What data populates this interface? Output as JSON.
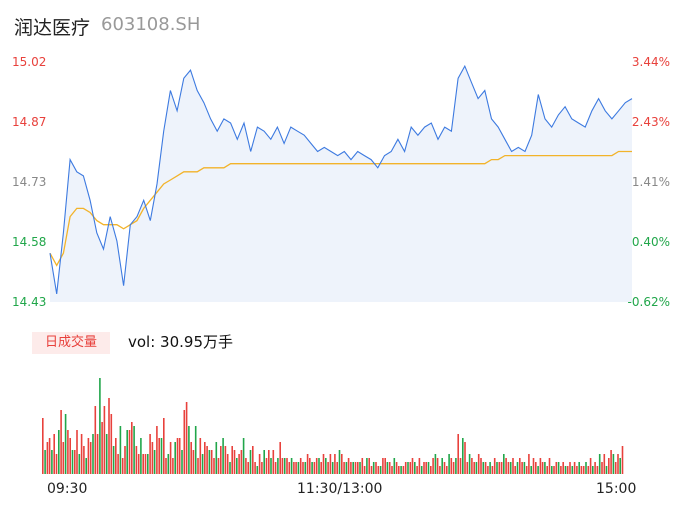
{
  "header": {
    "name": "润达医疗",
    "code": "603108.SH"
  },
  "colors": {
    "up": "#e8413c",
    "down": "#21a64a",
    "price_line": "#3d7ae0",
    "avg_line": "#f2b32a",
    "area": "#eef3fb",
    "neutral": "#888888"
  },
  "volume": {
    "tag": "日成交量",
    "label": "vol: 30.95万手"
  },
  "chart_data": {
    "type": "line",
    "left_axis": [
      "15.02",
      "14.87",
      "14.73",
      "14.58",
      "14.43"
    ],
    "right_axis": [
      "3.44%",
      "2.43%",
      "1.41%",
      "0.40%",
      "-0.62%"
    ],
    "x_ticks": [
      "09:30",
      "11:30/13:00",
      "15:00"
    ],
    "ylim": [
      14.43,
      15.02
    ],
    "prev_close": 14.52,
    "price": [
      14.55,
      14.45,
      14.6,
      14.78,
      14.75,
      14.74,
      14.68,
      14.6,
      14.56,
      14.64,
      14.58,
      14.47,
      14.62,
      14.64,
      14.68,
      14.63,
      14.72,
      14.85,
      14.95,
      14.9,
      14.98,
      15.0,
      14.95,
      14.92,
      14.88,
      14.85,
      14.88,
      14.87,
      14.83,
      14.87,
      14.8,
      14.86,
      14.85,
      14.83,
      14.86,
      14.82,
      14.86,
      14.85,
      14.84,
      14.82,
      14.8,
      14.81,
      14.8,
      14.79,
      14.8,
      14.78,
      14.8,
      14.79,
      14.78,
      14.76,
      14.79,
      14.8,
      14.83,
      14.8,
      14.86,
      14.84,
      14.86,
      14.87,
      14.83,
      14.86,
      14.85,
      14.98,
      15.01,
      14.97,
      14.93,
      14.95,
      14.88,
      14.86,
      14.83,
      14.8,
      14.81,
      14.8,
      14.84,
      14.94,
      14.88,
      14.86,
      14.89,
      14.91,
      14.88,
      14.87,
      14.86,
      14.9,
      14.93,
      14.9,
      14.88,
      14.9,
      14.92,
      14.93
    ],
    "avg_price": [
      14.55,
      14.52,
      14.55,
      14.64,
      14.66,
      14.66,
      14.65,
      14.63,
      14.62,
      14.62,
      14.62,
      14.61,
      14.62,
      14.63,
      14.66,
      14.68,
      14.7,
      14.72,
      14.73,
      14.74,
      14.75,
      14.75,
      14.75,
      14.76,
      14.76,
      14.76,
      14.76,
      14.77,
      14.77,
      14.77,
      14.77,
      14.77,
      14.77,
      14.77,
      14.77,
      14.77,
      14.77,
      14.77,
      14.77,
      14.77,
      14.77,
      14.77,
      14.77,
      14.77,
      14.77,
      14.77,
      14.77,
      14.77,
      14.77,
      14.77,
      14.77,
      14.77,
      14.77,
      14.77,
      14.77,
      14.77,
      14.77,
      14.77,
      14.77,
      14.77,
      14.77,
      14.77,
      14.77,
      14.77,
      14.77,
      14.77,
      14.78,
      14.78,
      14.79,
      14.79,
      14.79,
      14.79,
      14.79,
      14.79,
      14.79,
      14.79,
      14.79,
      14.79,
      14.79,
      14.79,
      14.79,
      14.79,
      14.79,
      14.79,
      14.79,
      14.8,
      14.8,
      14.8
    ],
    "volumes": [
      14,
      6,
      8,
      9,
      6,
      10,
      5,
      11,
      16,
      8,
      15,
      11,
      9,
      6,
      6,
      11,
      5,
      10,
      7,
      4,
      9,
      8,
      10,
      17,
      10,
      24,
      13,
      17,
      10,
      19,
      15,
      7,
      9,
      5,
      12,
      4,
      7,
      11,
      11,
      13,
      12,
      7,
      5,
      9,
      5,
      5,
      5,
      10,
      8,
      6,
      12,
      9,
      9,
      14,
      4,
      5,
      8,
      4,
      8,
      9,
      9,
      6,
      16,
      18,
      12,
      8,
      6,
      12,
      4,
      9,
      5,
      8,
      7,
      6,
      6,
      4,
      8,
      4,
      7,
      9,
      7,
      5,
      3,
      7,
      6,
      4,
      5,
      6,
      9,
      4,
      3,
      6,
      7,
      3,
      2,
      5,
      3,
      6,
      4,
      6,
      4,
      6,
      3,
      4,
      8,
      4,
      4,
      4,
      3,
      4,
      3,
      3,
      3,
      4,
      3,
      3,
      5,
      4,
      3,
      3,
      4,
      4,
      3,
      5,
      4,
      3,
      5,
      3,
      5,
      3,
      6,
      5,
      3,
      3,
      4,
      3,
      3,
      3,
      3,
      3,
      4,
      2,
      4,
      4,
      2,
      3,
      3,
      2,
      2,
      4,
      4,
      3,
      3,
      2,
      4,
      3,
      2,
      2,
      2,
      3,
      3,
      3,
      4,
      3,
      2,
      4,
      2,
      3,
      3,
      3,
      2,
      4,
      5,
      4,
      2,
      4,
      3,
      2,
      5,
      4,
      3,
      4,
      10,
      4,
      9,
      8,
      3,
      5,
      4,
      3,
      3,
      5,
      4,
      3,
      3,
      2,
      3,
      2,
      4,
      3,
      3,
      3,
      5,
      4,
      3,
      3,
      4,
      2,
      3,
      4,
      3,
      3,
      2,
      5,
      2,
      4,
      3,
      2,
      4,
      3,
      3,
      2,
      4,
      2,
      2,
      3,
      3,
      2,
      3,
      2,
      2,
      3,
      2,
      3,
      2,
      3,
      2,
      2,
      3,
      2,
      4,
      2,
      3,
      2,
      5,
      3,
      5,
      2,
      4,
      6,
      5,
      3,
      5,
      4,
      7
    ]
  }
}
